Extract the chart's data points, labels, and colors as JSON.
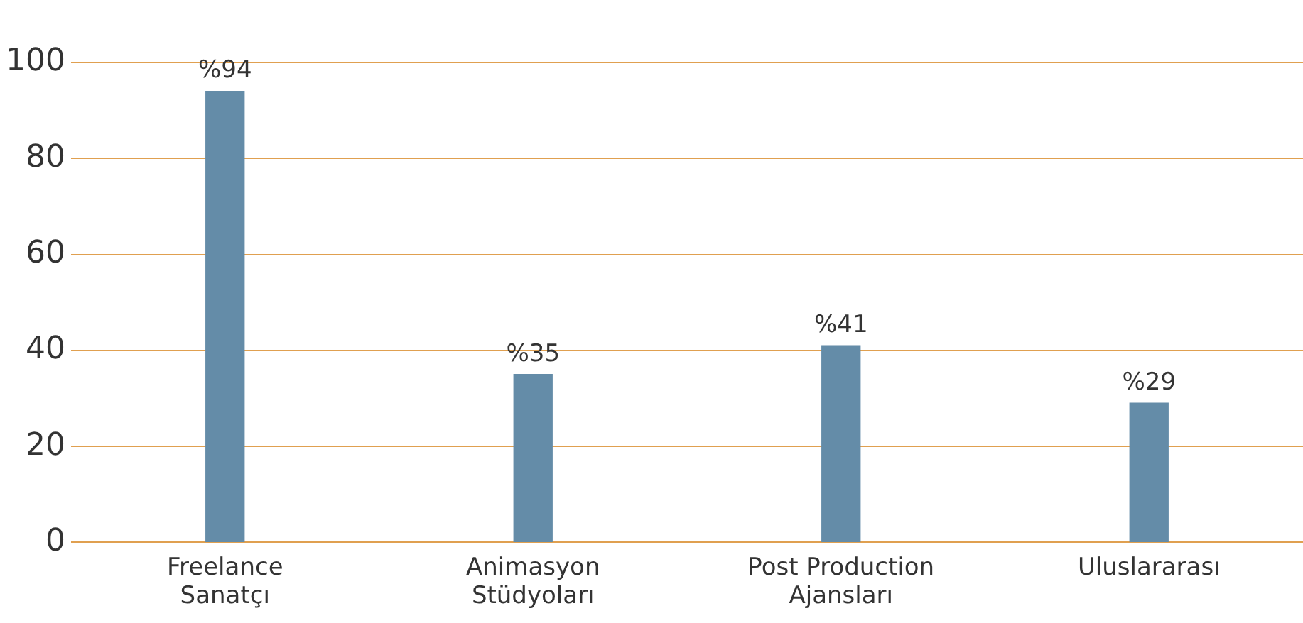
{
  "chart_data": {
    "type": "bar",
    "categories": [
      "Freelance Sanatçı",
      "Animasyon Stüdyoları",
      "Post Production Ajansları",
      "Uluslararası"
    ],
    "values": [
      94,
      35,
      41,
      29
    ],
    "color": "#648ca8",
    "value_labels": [
      "%94",
      "%35",
      "%41",
      "%29"
    ],
    "ylim": [
      0,
      100
    ],
    "yticks": [
      0,
      20,
      40,
      60,
      80,
      100
    ],
    "grid": "y",
    "legend": false
  }
}
